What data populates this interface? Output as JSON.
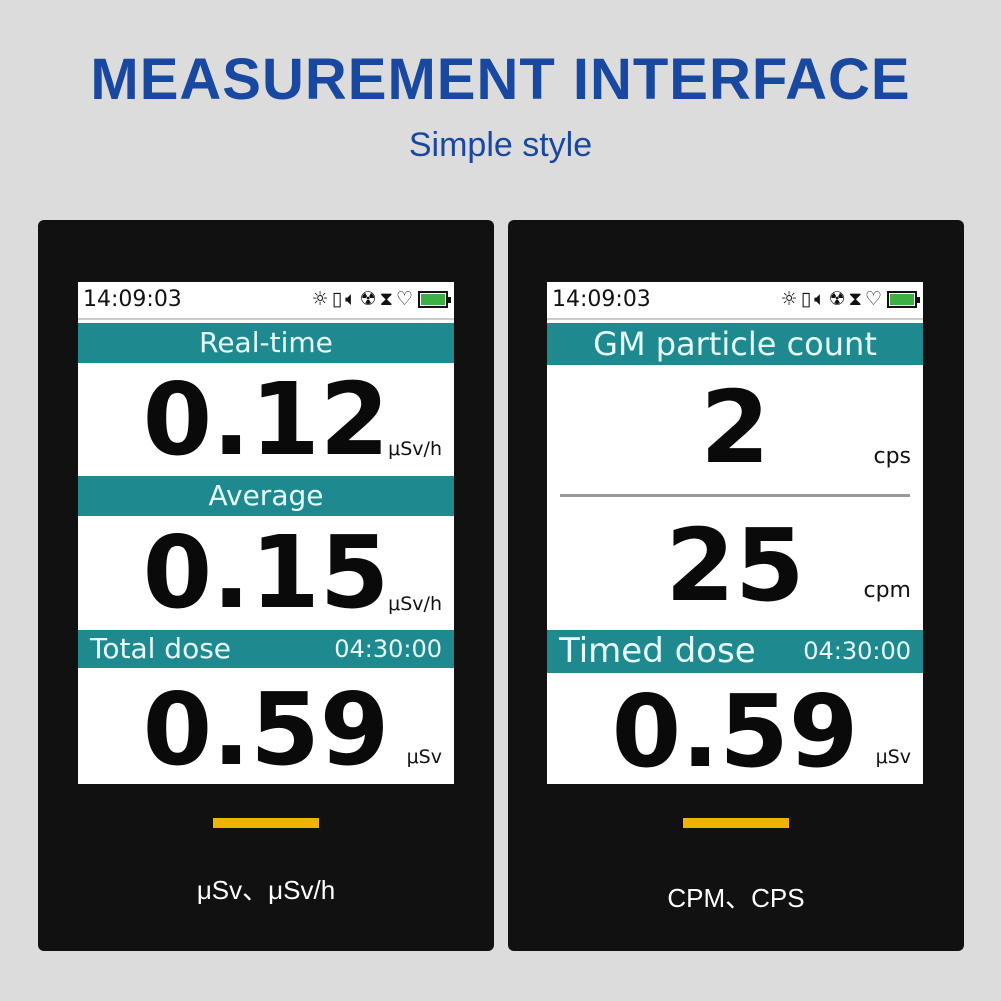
{
  "header": {
    "title": "MEASUREMENT INTERFACE",
    "subtitle": "Simple style"
  },
  "colors": {
    "teal": "#1e8a8f",
    "title_blue": "#1848a0",
    "accent_yellow": "#f0b400",
    "battery_green": "#3cb043"
  },
  "status_bar": {
    "time": "14:09:03",
    "icons": [
      "brightness-icon",
      "vibration-icon",
      "speaker-icon",
      "radiation-icon",
      "hourglass-icon",
      "heartbeat-icon",
      "battery-icon"
    ],
    "battery_level": 1.0
  },
  "left": {
    "sections": [
      {
        "label": "Real-time",
        "value": "0.12",
        "unit": "μSv/h"
      },
      {
        "label": "Average",
        "value": "0.15",
        "unit": "μSv/h"
      },
      {
        "label": "Total dose",
        "timer": "04:30:00",
        "value": "0.59",
        "unit": "μSv"
      }
    ],
    "caption": "μSv、μSv/h"
  },
  "right": {
    "header": "GM particle count",
    "cps_value": "2",
    "cps_unit": "cps",
    "cpm_value": "25",
    "cpm_unit": "cpm",
    "timed": {
      "label": "Timed dose",
      "timer": "04:30:00",
      "value": "0.59",
      "unit": "μSv"
    },
    "caption": "CPM、CPS"
  }
}
